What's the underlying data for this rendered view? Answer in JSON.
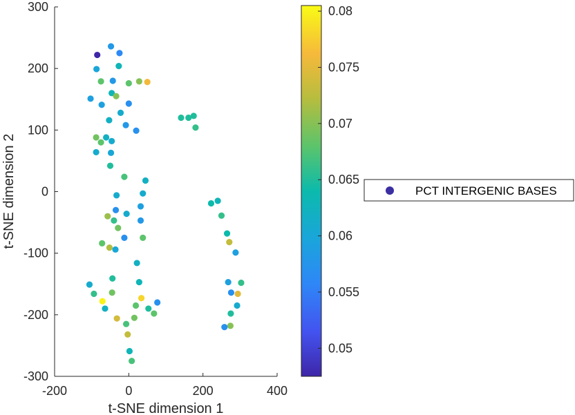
{
  "chart_data": {
    "type": "scatter",
    "title": "",
    "xlabel": "t-SNE dimension 1",
    "ylabel": "t-SNE dimension 2",
    "xlim": [
      -200,
      400
    ],
    "ylim": [
      -300,
      300
    ],
    "xticks": [
      -200,
      0,
      200,
      400
    ],
    "yticks": [
      -300,
      -200,
      -100,
      0,
      100,
      200,
      300
    ],
    "xtick_labels": [
      "-200",
      "0",
      "200",
      "400"
    ],
    "ytick_labels": [
      "-300",
      "-200",
      "-100",
      "0",
      "100",
      "200",
      "300"
    ],
    "grid": false,
    "colorbar": {
      "colormap": "parula",
      "range": [
        0.0475,
        0.0805
      ],
      "ticks": [
        0.05,
        0.055,
        0.06,
        0.065,
        0.07,
        0.075,
        0.08
      ],
      "tick_labels": [
        "0.05",
        "0.055",
        "0.06",
        "0.065",
        "0.07",
        "0.075",
        "0.08"
      ]
    },
    "legend": {
      "placement": "right",
      "entries": [
        {
          "label": "PCT INTERGENIC BASES",
          "color": "#3b2fa3"
        }
      ]
    },
    "series": [
      {
        "name": "PCT INTERGENIC BASES",
        "points": [
          {
            "x": -85,
            "y": 222,
            "c": 0.0475
          },
          {
            "x": -48,
            "y": 236,
            "c": 0.058
          },
          {
            "x": -25,
            "y": 225,
            "c": 0.056
          },
          {
            "x": -87,
            "y": 199,
            "c": 0.06
          },
          {
            "x": -27,
            "y": 204,
            "c": 0.063
          },
          {
            "x": -75,
            "y": 179,
            "c": 0.068
          },
          {
            "x": -43,
            "y": 180,
            "c": 0.058
          },
          {
            "x": 0,
            "y": 176,
            "c": 0.068
          },
          {
            "x": 28,
            "y": 179,
            "c": 0.07
          },
          {
            "x": 50,
            "y": 178,
            "c": 0.076
          },
          {
            "x": -103,
            "y": 151,
            "c": 0.059
          },
          {
            "x": -46,
            "y": 160,
            "c": 0.063
          },
          {
            "x": -34,
            "y": 155,
            "c": 0.07
          },
          {
            "x": -73,
            "y": 141,
            "c": 0.059
          },
          {
            "x": 0,
            "y": 143,
            "c": 0.057
          },
          {
            "x": -22,
            "y": 128,
            "c": 0.061
          },
          {
            "x": -53,
            "y": 116,
            "c": 0.062
          },
          {
            "x": -8,
            "y": 108,
            "c": 0.058
          },
          {
            "x": 20,
            "y": 99,
            "c": 0.057
          },
          {
            "x": -88,
            "y": 88,
            "c": 0.069
          },
          {
            "x": -61,
            "y": 88,
            "c": 0.062
          },
          {
            "x": -46,
            "y": 82,
            "c": 0.061
          },
          {
            "x": -75,
            "y": 80,
            "c": 0.068
          },
          {
            "x": -88,
            "y": 64,
            "c": 0.061
          },
          {
            "x": -48,
            "y": 63,
            "c": 0.06
          },
          {
            "x": -50,
            "y": 42,
            "c": 0.065
          },
          {
            "x": -12,
            "y": 24,
            "c": 0.067
          },
          {
            "x": 45,
            "y": 18,
            "c": 0.062
          },
          {
            "x": -33,
            "y": -6,
            "c": 0.061
          },
          {
            "x": 38,
            "y": -3,
            "c": 0.061
          },
          {
            "x": -35,
            "y": -30,
            "c": 0.057
          },
          {
            "x": 32,
            "y": -24,
            "c": 0.059
          },
          {
            "x": -6,
            "y": -36,
            "c": 0.061
          },
          {
            "x": -57,
            "y": -40,
            "c": 0.071
          },
          {
            "x": -40,
            "y": -47,
            "c": 0.066
          },
          {
            "x": 32,
            "y": -47,
            "c": 0.058
          },
          {
            "x": -29,
            "y": -59,
            "c": 0.069
          },
          {
            "x": -12,
            "y": -75,
            "c": 0.057
          },
          {
            "x": 38,
            "y": -75,
            "c": 0.068
          },
          {
            "x": -72,
            "y": -84,
            "c": 0.068
          },
          {
            "x": -52,
            "y": -91,
            "c": 0.072
          },
          {
            "x": -36,
            "y": -94,
            "c": 0.06
          },
          {
            "x": 22,
            "y": -116,
            "c": 0.062
          },
          {
            "x": -44,
            "y": -141,
            "c": 0.065
          },
          {
            "x": 28,
            "y": -147,
            "c": 0.063
          },
          {
            "x": -106,
            "y": -151,
            "c": 0.061
          },
          {
            "x": -94,
            "y": -166,
            "c": 0.066
          },
          {
            "x": -45,
            "y": -164,
            "c": 0.069
          },
          {
            "x": -71,
            "y": -178,
            "c": 0.08
          },
          {
            "x": 34,
            "y": -173,
            "c": 0.078
          },
          {
            "x": 77,
            "y": -180,
            "c": 0.057
          },
          {
            "x": 19,
            "y": -185,
            "c": 0.068
          },
          {
            "x": -64,
            "y": -190,
            "c": 0.062
          },
          {
            "x": 53,
            "y": -190,
            "c": 0.065
          },
          {
            "x": 68,
            "y": -198,
            "c": 0.068
          },
          {
            "x": -32,
            "y": -206,
            "c": 0.074
          },
          {
            "x": 15,
            "y": -205,
            "c": 0.069
          },
          {
            "x": -7,
            "y": -215,
            "c": 0.067
          },
          {
            "x": -3,
            "y": -232,
            "c": 0.073
          },
          {
            "x": 2,
            "y": -259,
            "c": 0.063
          },
          {
            "x": 8,
            "y": -275,
            "c": 0.067
          },
          {
            "x": 141,
            "y": 120,
            "c": 0.065
          },
          {
            "x": 161,
            "y": 120,
            "c": 0.065
          },
          {
            "x": 175,
            "y": 123,
            "c": 0.065
          },
          {
            "x": 180,
            "y": 104,
            "c": 0.066
          },
          {
            "x": 222,
            "y": -19,
            "c": 0.064
          },
          {
            "x": 240,
            "y": -15,
            "c": 0.063
          },
          {
            "x": 250,
            "y": -39,
            "c": 0.066
          },
          {
            "x": 265,
            "y": -68,
            "c": 0.064
          },
          {
            "x": 271,
            "y": -82,
            "c": 0.073
          },
          {
            "x": 288,
            "y": -99,
            "c": 0.059
          },
          {
            "x": 268,
            "y": -147,
            "c": 0.059
          },
          {
            "x": 303,
            "y": -148,
            "c": 0.066
          },
          {
            "x": 276,
            "y": -164,
            "c": 0.057
          },
          {
            "x": 294,
            "y": -166,
            "c": 0.075
          },
          {
            "x": 292,
            "y": -185,
            "c": 0.061
          },
          {
            "x": 275,
            "y": -198,
            "c": 0.065
          },
          {
            "x": 274,
            "y": -218,
            "c": 0.07
          },
          {
            "x": 258,
            "y": -220,
            "c": 0.057
          }
        ]
      }
    ]
  }
}
